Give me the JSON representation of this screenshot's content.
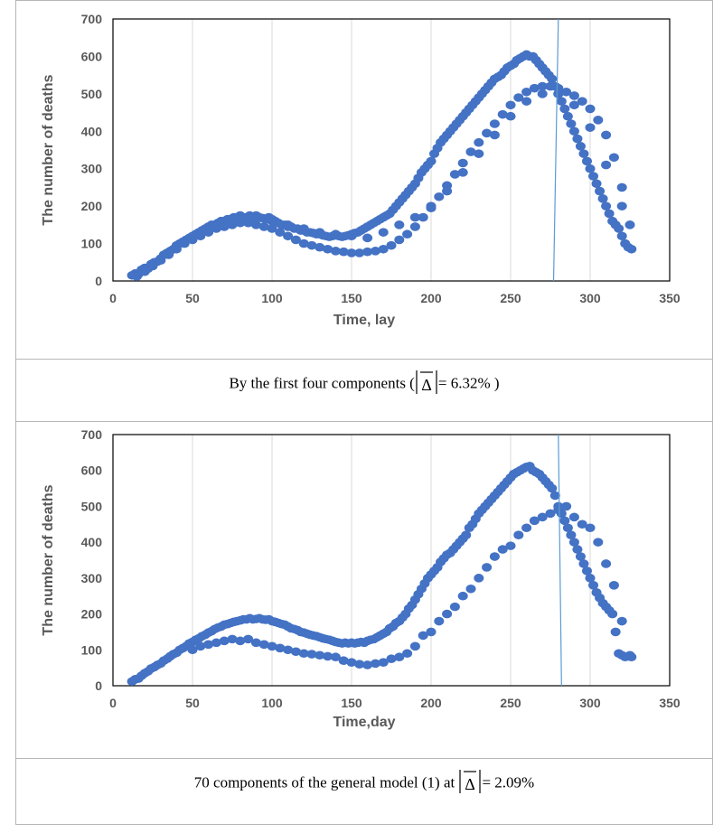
{
  "chart_data": [
    {
      "type": "scatter",
      "title": "",
      "xlabel": "Time, lay",
      "ylabel": "The number of deaths",
      "xlim": [
        0,
        350
      ],
      "ylim": [
        0,
        700
      ],
      "xticks": [
        "0",
        "50",
        "100",
        "150",
        "200",
        "250",
        "300",
        "350"
      ],
      "yticks": [
        "0",
        "100",
        "200",
        "300",
        "400",
        "500",
        "600",
        "700"
      ],
      "grid": "vertical",
      "marker_color": "#4472c4",
      "vline_color": "#5b9bd5",
      "vline": [
        [
          277,
          0
        ],
        [
          280,
          700
        ]
      ],
      "series": [
        {
          "x": [
            12,
            14,
            16,
            18,
            20,
            22,
            24,
            26,
            28,
            30,
            32,
            34,
            36,
            38,
            40,
            42,
            44,
            46,
            48,
            50,
            52,
            54,
            56,
            58,
            60,
            62,
            64,
            66,
            68,
            70,
            72,
            74,
            76,
            78,
            80,
            82,
            84,
            86,
            88,
            90,
            92,
            94,
            96,
            98,
            100,
            102,
            104,
            106,
            108,
            110,
            112,
            114,
            116,
            118,
            120,
            122,
            124,
            126,
            128,
            130,
            132,
            134,
            136,
            138,
            140,
            142,
            144,
            146,
            148,
            150,
            152,
            154,
            156,
            158,
            160,
            162,
            164,
            166,
            168,
            170,
            172,
            174,
            176,
            178,
            180,
            182,
            184,
            186,
            188,
            190,
            192,
            194,
            196,
            198,
            200,
            202,
            204,
            206,
            208,
            210,
            212,
            214,
            216,
            218,
            220,
            222,
            224,
            226,
            228,
            230,
            232,
            234,
            236,
            238,
            240,
            242,
            244,
            246,
            248,
            250,
            252,
            254,
            256,
            258,
            260,
            262,
            264,
            266,
            268,
            270,
            272,
            274,
            276,
            278,
            280,
            282,
            284,
            286,
            288,
            290,
            292,
            294,
            296,
            298,
            300,
            302,
            304,
            306,
            308,
            310,
            312,
            314,
            316,
            318,
            320,
            322,
            324,
            326
          ],
          "y": [
            15,
            20,
            18,
            30,
            35,
            33,
            45,
            50,
            52,
            60,
            70,
            75,
            80,
            85,
            95,
            100,
            105,
            110,
            115,
            120,
            125,
            130,
            135,
            140,
            145,
            150,
            150,
            155,
            160,
            160,
            165,
            165,
            170,
            170,
            175,
            170,
            170,
            175,
            170,
            175,
            170,
            168,
            165,
            170,
            165,
            160,
            155,
            150,
            150,
            145,
            145,
            140,
            140,
            135,
            135,
            130,
            130,
            128,
            125,
            125,
            122,
            120,
            118,
            120,
            122,
            120,
            118,
            120,
            122,
            125,
            128,
            130,
            135,
            140,
            145,
            150,
            155,
            160,
            165,
            170,
            175,
            180,
            190,
            200,
            210,
            220,
            230,
            240,
            250,
            260,
            275,
            290,
            300,
            310,
            320,
            340,
            355,
            370,
            380,
            390,
            400,
            410,
            420,
            430,
            440,
            450,
            460,
            470,
            480,
            490,
            500,
            510,
            520,
            530,
            540,
            545,
            550,
            560,
            570,
            575,
            580,
            590,
            595,
            600,
            605,
            600,
            600,
            590,
            580,
            570,
            560,
            550,
            540,
            520,
            500,
            480,
            460,
            440,
            420,
            400,
            380,
            360,
            340,
            320,
            300,
            280,
            260,
            240,
            220,
            200,
            180,
            160,
            150,
            140,
            120,
            100,
            90,
            85
          ]
        },
        {
          "x": [
            15,
            20,
            25,
            30,
            35,
            40,
            45,
            50,
            55,
            60,
            65,
            70,
            75,
            80,
            85,
            90,
            95,
            100,
            105,
            110,
            115,
            120,
            125,
            130,
            135,
            140,
            145,
            150,
            155,
            160,
            165,
            170,
            175,
            180,
            185,
            190,
            195,
            200,
            205,
            210,
            215,
            220,
            225,
            230,
            235,
            240,
            245,
            250,
            255,
            260,
            265,
            270,
            275,
            280,
            285,
            290,
            295,
            300,
            305,
            310,
            315,
            320,
            325
          ],
          "y": [
            12,
            25,
            40,
            55,
            70,
            85,
            100,
            110,
            120,
            130,
            140,
            145,
            150,
            155,
            155,
            150,
            145,
            140,
            130,
            120,
            110,
            100,
            95,
            90,
            85,
            80,
            78,
            75,
            75,
            78,
            80,
            85,
            95,
            110,
            125,
            145,
            170,
            195,
            225,
            255,
            285,
            315,
            345,
            370,
            395,
            420,
            445,
            470,
            490,
            505,
            515,
            520,
            520,
            515,
            505,
            495,
            480,
            460,
            430,
            390,
            330,
            250,
            150
          ]
        },
        {
          "x": [
            60,
            70,
            80,
            90,
            100,
            110,
            120,
            130,
            140,
            150,
            160,
            170,
            180,
            190,
            200,
            210,
            220,
            230,
            240,
            250,
            260,
            270,
            280,
            290,
            300,
            310,
            320
          ],
          "y": [
            140,
            155,
            165,
            170,
            160,
            150,
            140,
            130,
            125,
            120,
            115,
            130,
            150,
            170,
            200,
            240,
            290,
            340,
            390,
            440,
            480,
            500,
            500,
            470,
            410,
            310,
            200
          ]
        }
      ]
    },
    {
      "type": "scatter",
      "title": "",
      "xlabel": "Time,day",
      "ylabel": "The number of deaths",
      "xlim": [
        0,
        350
      ],
      "ylim": [
        0,
        700
      ],
      "xticks": [
        "0",
        "50",
        "100",
        "150",
        "200",
        "250",
        "300",
        "350"
      ],
      "yticks": [
        "0",
        "100",
        "200",
        "300",
        "400",
        "500",
        "600",
        "700"
      ],
      "grid": "vertical",
      "marker_color": "#4472c4",
      "vline_color": "#5b9bd5",
      "vline": [
        [
          282,
          0
        ],
        [
          280,
          700
        ]
      ],
      "series": [
        {
          "x": [
            12,
            14,
            16,
            18,
            20,
            22,
            24,
            26,
            28,
            30,
            32,
            34,
            36,
            38,
            40,
            42,
            44,
            46,
            48,
            50,
            52,
            54,
            56,
            58,
            60,
            62,
            64,
            66,
            68,
            70,
            72,
            74,
            76,
            78,
            80,
            82,
            84,
            86,
            88,
            90,
            92,
            94,
            96,
            98,
            100,
            102,
            104,
            106,
            108,
            110,
            112,
            114,
            116,
            118,
            120,
            122,
            124,
            126,
            128,
            130,
            132,
            134,
            136,
            138,
            140,
            142,
            144,
            146,
            148,
            150,
            152,
            154,
            156,
            158,
            160,
            162,
            164,
            166,
            168,
            170,
            172,
            174,
            176,
            178,
            180,
            182,
            184,
            186,
            188,
            190,
            192,
            194,
            196,
            198,
            200,
            202,
            204,
            206,
            208,
            210,
            212,
            214,
            216,
            218,
            220,
            222,
            224,
            226,
            228,
            230,
            232,
            234,
            236,
            238,
            240,
            242,
            244,
            246,
            248,
            250,
            252,
            254,
            256,
            258,
            260,
            262,
            264,
            266,
            268,
            270,
            272,
            274,
            276,
            278,
            280,
            282,
            284,
            286,
            288,
            290,
            292,
            294,
            296,
            298,
            300,
            302,
            304,
            306,
            308,
            310,
            312,
            314,
            316,
            318,
            320,
            322,
            324,
            326
          ],
          "y": [
            12,
            18,
            20,
            28,
            35,
            40,
            48,
            52,
            58,
            62,
            70,
            75,
            82,
            88,
            92,
            100,
            105,
            110,
            118,
            122,
            128,
            132,
            138,
            142,
            148,
            152,
            158,
            162,
            165,
            170,
            172,
            175,
            178,
            180,
            182,
            185,
            185,
            188,
            185,
            186,
            188,
            185,
            184,
            185,
            180,
            178,
            175,
            172,
            170,
            165,
            160,
            158,
            155,
            150,
            148,
            145,
            142,
            140,
            138,
            135,
            132,
            130,
            128,
            125,
            122,
            120,
            118,
            120,
            118,
            120,
            118,
            120,
            122,
            120,
            125,
            128,
            130,
            135,
            140,
            145,
            150,
            160,
            165,
            175,
            180,
            190,
            200,
            215,
            225,
            240,
            255,
            270,
            285,
            300,
            310,
            320,
            330,
            345,
            355,
            365,
            370,
            380,
            390,
            400,
            410,
            420,
            440,
            450,
            465,
            480,
            490,
            500,
            510,
            520,
            530,
            540,
            550,
            560,
            570,
            580,
            590,
            595,
            600,
            605,
            610,
            612,
            600,
            595,
            590,
            580,
            570,
            560,
            550,
            530,
            500,
            480,
            460,
            440,
            420,
            400,
            380,
            360,
            340,
            320,
            300,
            280,
            260,
            245,
            230,
            220,
            210,
            200,
            150,
            90,
            85,
            80,
            82,
            80
          ]
        },
        {
          "x": [
            50,
            55,
            60,
            65,
            70,
            75,
            80,
            85,
            90,
            95,
            100,
            105,
            110,
            115,
            120,
            125,
            130,
            135,
            140,
            145,
            150,
            155,
            160,
            165,
            170,
            175,
            180,
            185,
            190,
            195,
            200,
            205,
            210,
            215,
            220,
            225,
            230,
            235,
            240,
            245,
            250,
            255,
            260,
            265,
            270,
            275,
            280,
            285,
            290,
            295,
            300,
            305,
            310,
            315,
            320,
            325
          ],
          "y": [
            100,
            110,
            115,
            120,
            125,
            130,
            125,
            130,
            120,
            115,
            110,
            105,
            100,
            95,
            90,
            88,
            85,
            82,
            80,
            70,
            65,
            60,
            58,
            62,
            65,
            75,
            80,
            90,
            110,
            140,
            150,
            180,
            200,
            220,
            250,
            270,
            300,
            330,
            360,
            380,
            390,
            420,
            440,
            460,
            470,
            480,
            490,
            500,
            470,
            450,
            440,
            400,
            340,
            280,
            180,
            85
          ]
        }
      ]
    }
  ],
  "captions": [
    {
      "prefix": "By the first four components (",
      "delta_symbol": "Δ",
      "equals_value": "= 6.32%",
      "suffix": " )"
    },
    {
      "prefix": "70 components of the general model (1) at ",
      "delta_symbol": "Δ",
      "equals_value": "= 2.09%",
      "suffix": ""
    }
  ]
}
